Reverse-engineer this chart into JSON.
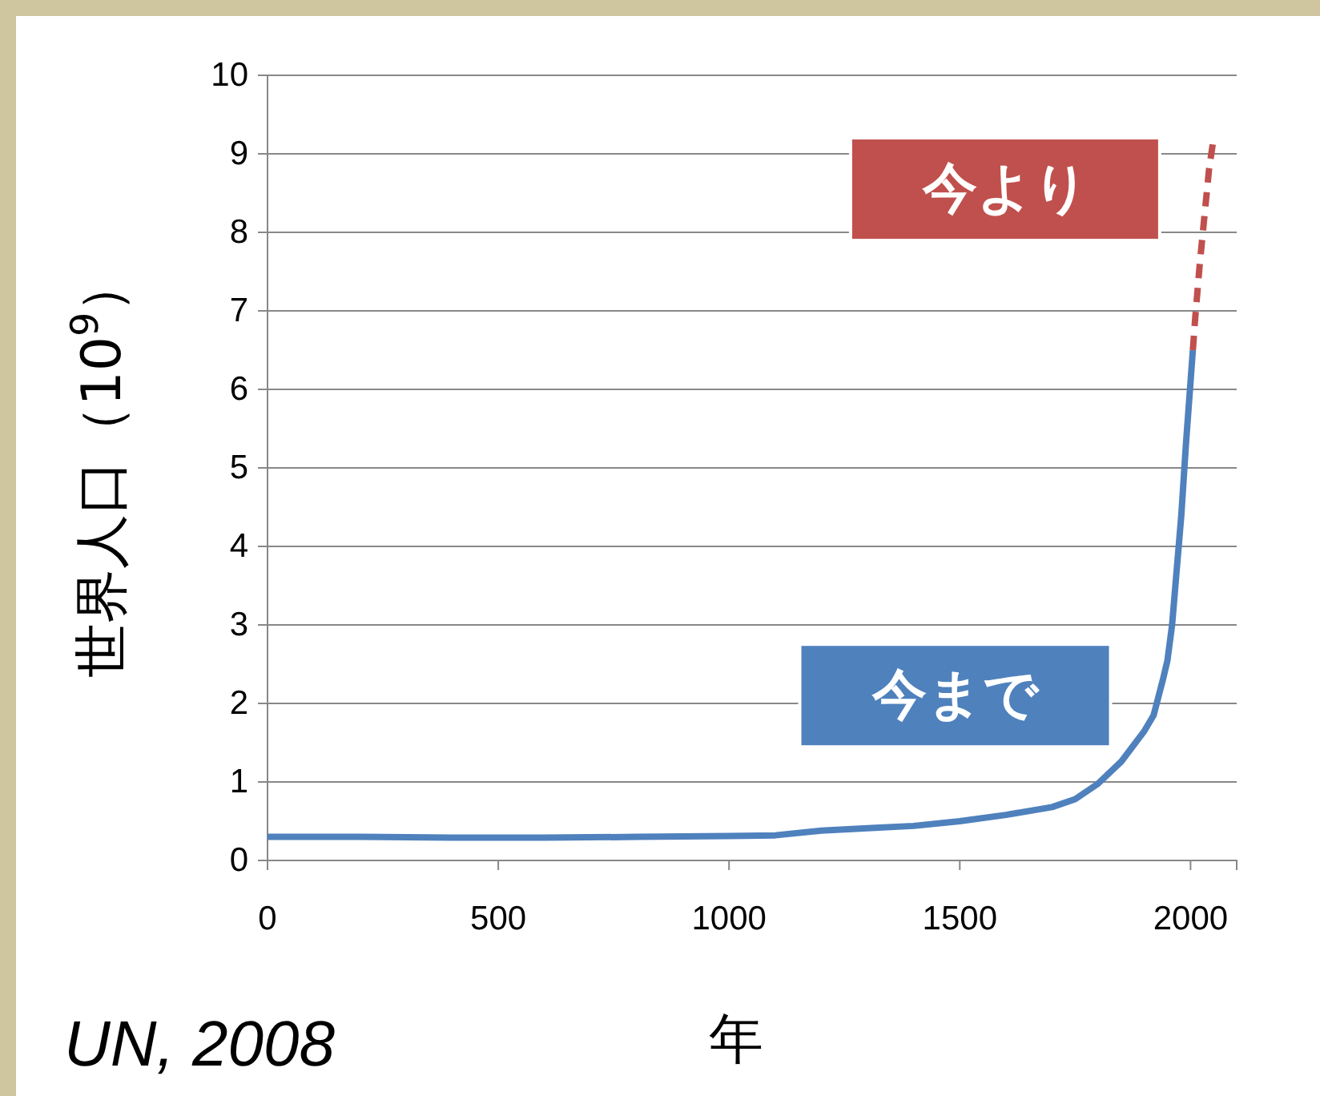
{
  "chart_data": {
    "type": "line",
    "xlabel": "年",
    "ylabel": "世界人口（10$^{9}$）",
    "annotations": [
      "UN, 2008"
    ],
    "xlim": [
      0,
      2100
    ],
    "xticks": [
      0,
      500,
      1000,
      1500,
      2000
    ],
    "ylim": [
      0,
      10
    ],
    "yticks": [
      0,
      1,
      2,
      3,
      4,
      5,
      6,
      7,
      8,
      9,
      10
    ],
    "grid": "y",
    "series": [
      {
        "name": "今まで",
        "color": "#4f81bd",
        "line_style": "solid",
        "x": [
          0,
          200,
          400,
          600,
          800,
          1000,
          1100,
          1200,
          1300,
          1400,
          1500,
          1600,
          1700,
          1750,
          1800,
          1850,
          1900,
          1920,
          1940,
          1950,
          1960,
          1970,
          1980,
          1990,
          2000,
          2005
        ],
        "values": [
          0.3,
          0.3,
          0.29,
          0.29,
          0.3,
          0.31,
          0.32,
          0.38,
          0.41,
          0.44,
          0.5,
          0.58,
          0.68,
          0.78,
          0.98,
          1.26,
          1.65,
          1.85,
          2.3,
          2.55,
          3.0,
          3.7,
          4.4,
          5.3,
          6.1,
          6.5
        ]
      },
      {
        "name": "今より",
        "color": "#c0504d",
        "line_style": "dashed",
        "x": [
          2005,
          2010,
          2020,
          2030,
          2040,
          2050
        ],
        "values": [
          6.5,
          6.9,
          7.6,
          8.2,
          8.8,
          9.2
        ]
      }
    ]
  }
}
